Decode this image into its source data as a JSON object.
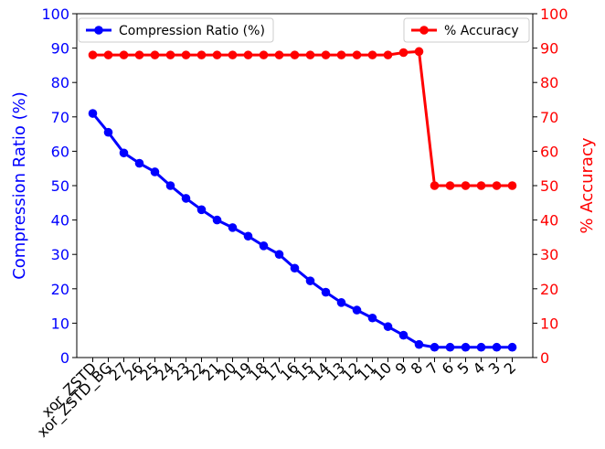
{
  "chart_data": {
    "type": "line",
    "title": "",
    "xlabel": "",
    "ylabel_left": "Compression Ratio (%)",
    "ylabel_right": "% Accuracy",
    "ylim_left": [
      0,
      100
    ],
    "ylim_right": [
      0,
      100
    ],
    "yticks": [
      "0",
      "10",
      "20",
      "30",
      "40",
      "50",
      "60",
      "70",
      "80",
      "90",
      "100"
    ],
    "categories": [
      "xor_ZSTD",
      "xor_ZSTD_BG",
      "27",
      "26",
      "25",
      "24",
      "23",
      "22",
      "21",
      "20",
      "19",
      "18",
      "17",
      "16",
      "15",
      "14",
      "13",
      "12",
      "11",
      "10",
      "9",
      "8",
      "7",
      "6",
      "5",
      "4",
      "3",
      "2"
    ],
    "series": [
      {
        "name": "Compression Ratio (%)",
        "axis": "left",
        "color": "#0000ff",
        "values": [
          71.0,
          65.5,
          59.5,
          56.5,
          54.0,
          50.0,
          46.3,
          43.0,
          40.0,
          37.8,
          35.3,
          32.5,
          30.0,
          26.0,
          22.3,
          19.0,
          16.0,
          13.8,
          11.5,
          9.0,
          6.5,
          3.8,
          3.0,
          3.0,
          3.0,
          3.0,
          3.0,
          3.0
        ]
      },
      {
        "name": "% Accuracy",
        "axis": "right",
        "color": "#ff0000",
        "values": [
          88.0,
          88.0,
          88.0,
          88.0,
          88.0,
          88.0,
          88.0,
          88.0,
          88.0,
          88.0,
          88.0,
          88.0,
          88.0,
          88.0,
          88.0,
          88.0,
          88.0,
          88.0,
          88.0,
          88.0,
          88.7,
          89.0,
          50.0,
          50.0,
          50.0,
          50.0,
          50.0,
          50.0
        ]
      }
    ],
    "legend": [
      {
        "label": "Compression Ratio (%)",
        "placement": "upper-left",
        "series": 0
      },
      {
        "label": "% Accuracy",
        "placement": "upper-right",
        "series": 1
      }
    ],
    "grid": false
  }
}
